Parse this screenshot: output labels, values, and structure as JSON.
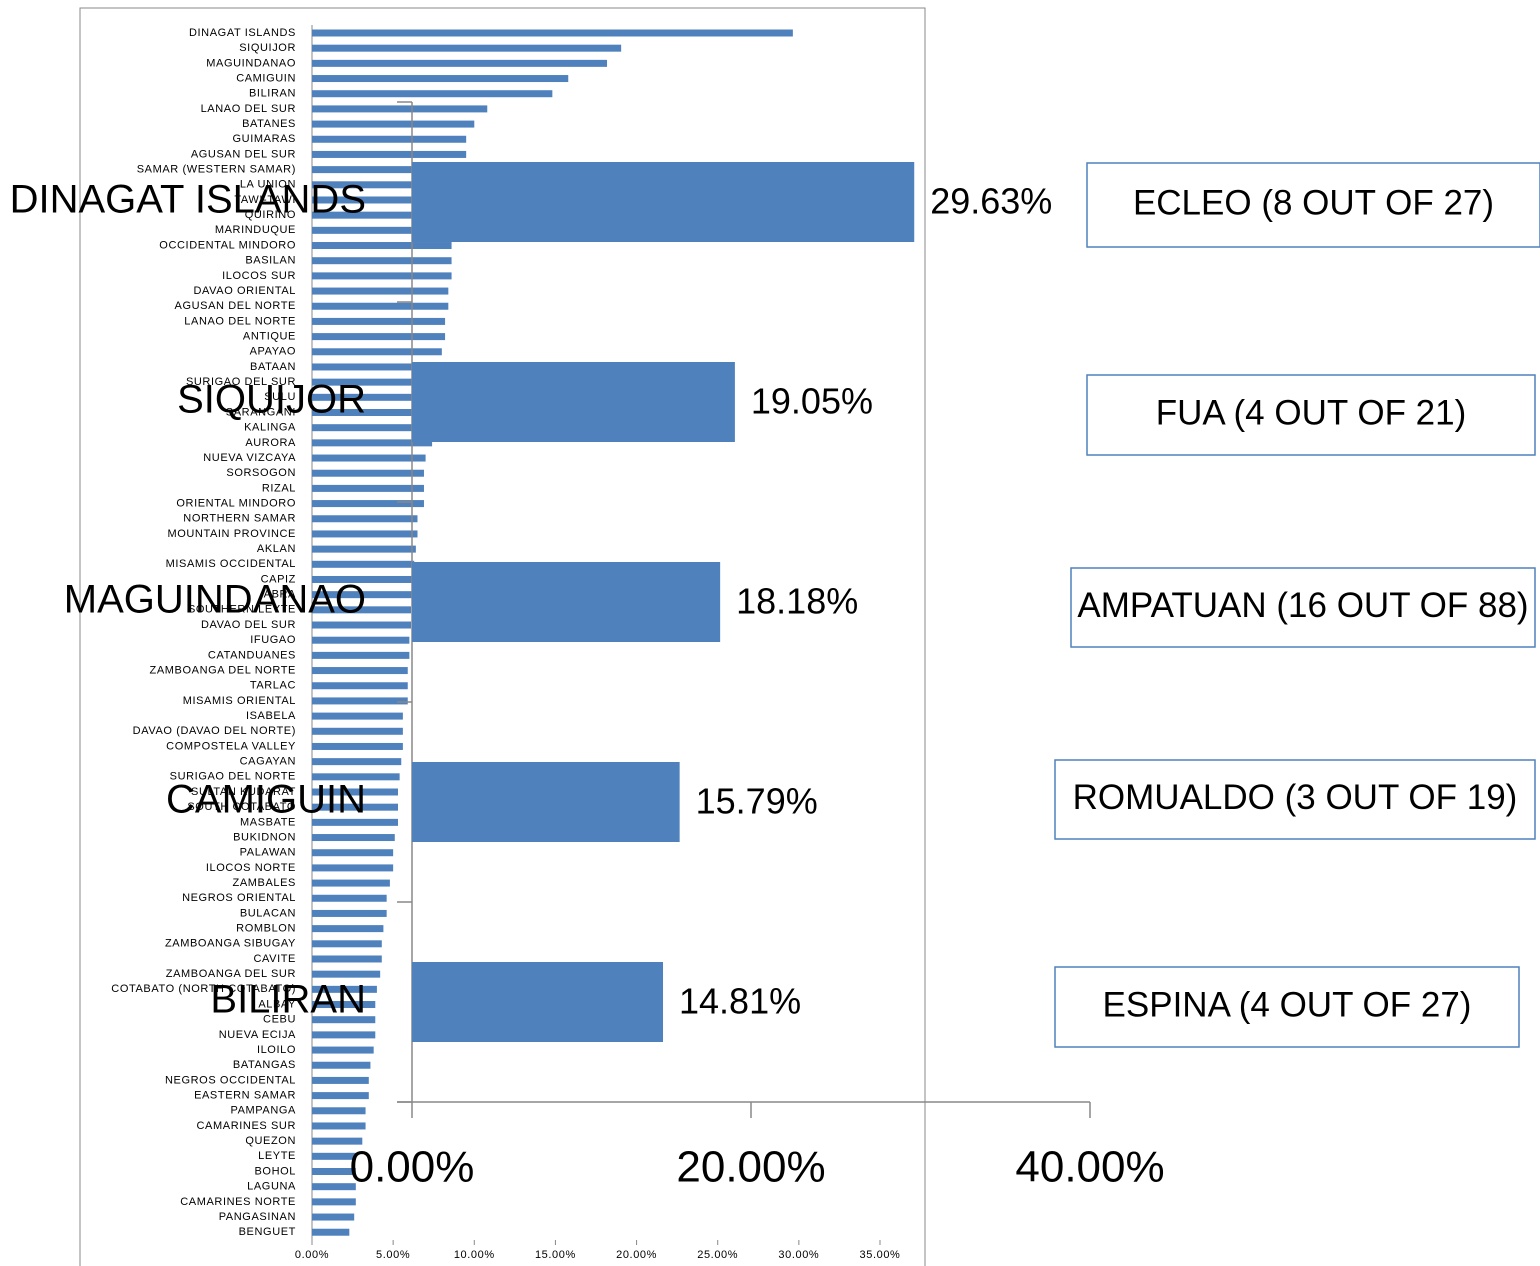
{
  "chart_data": [
    {
      "type": "hbar",
      "color": "#4f81bd",
      "categories": [
        "DINAGAT ISLANDS",
        "SIQUIJOR",
        "MAGUINDANAO",
        "CAMIGUIN",
        "BILIRAN",
        "LANAO DEL SUR",
        "BATANES",
        "GUIMARAS",
        "AGUSAN DEL SUR",
        "SAMAR (WESTERN SAMAR)",
        "LA UNION",
        "TAWI-TAWI",
        "QUIRINO",
        "MARINDUQUE",
        "OCCIDENTAL MINDORO",
        "BASILAN",
        "ILOCOS SUR",
        "DAVAO ORIENTAL",
        "AGUSAN DEL NORTE",
        "LANAO DEL NORTE",
        "ANTIQUE",
        "APAYAO",
        "BATAAN",
        "SURIGAO DEL SUR",
        "SULU",
        "SARANGANI",
        "KALINGA",
        "AURORA",
        "NUEVA VIZCAYA",
        "SORSOGON",
        "RIZAL",
        "ORIENTAL MINDORO",
        "NORTHERN SAMAR",
        "MOUNTAIN PROVINCE",
        "AKLAN",
        "MISAMIS OCCIDENTAL",
        "CAPIZ",
        "ABRA",
        "SOUTHERN LEYTE",
        "DAVAO DEL SUR",
        "IFUGAO",
        "CATANDUANES",
        "ZAMBOANGA DEL NORTE",
        "TARLAC",
        "MISAMIS ORIENTAL",
        "ISABELA",
        "DAVAO (DAVAO DEL NORTE)",
        "COMPOSTELA VALLEY",
        "CAGAYAN",
        "SURIGAO DEL NORTE",
        "SULTAN KUDARAT",
        "SOUTH COTABATO",
        "MASBATE",
        "BUKIDNON",
        "PALAWAN",
        "ILOCOS NORTE",
        "ZAMBALES",
        "NEGROS ORIENTAL",
        "BULACAN",
        "ROMBLON",
        "ZAMBOANGA SIBUGAY",
        "CAVITE",
        "ZAMBOANGA DEL SUR",
        "COTABATO (NORTH COTABATO)",
        "ALBAY",
        "CEBU",
        "NUEVA ECIJA",
        "ILOILO",
        "BATANGAS",
        "NEGROS OCCIDENTAL",
        "EASTERN SAMAR",
        "PAMPANGA",
        "CAMARINES SUR",
        "QUEZON",
        "LEYTE",
        "BOHOL",
        "LAGUNA",
        "CAMARINES NORTE",
        "PANGASINAN",
        "BENGUET"
      ],
      "values": [
        29.63,
        19.05,
        18.18,
        15.79,
        14.81,
        10.8,
        10.0,
        9.5,
        9.5,
        9.2,
        9.0,
        8.9,
        8.8,
        8.7,
        8.6,
        8.6,
        8.6,
        8.4,
        8.4,
        8.2,
        8.2,
        8.0,
        7.9,
        7.8,
        7.7,
        7.6,
        7.5,
        7.4,
        7.0,
        6.9,
        6.9,
        6.9,
        6.5,
        6.5,
        6.4,
        6.3,
        6.2,
        6.2,
        6.1,
        6.1,
        6.0,
        6.0,
        5.9,
        5.9,
        5.9,
        5.6,
        5.6,
        5.6,
        5.5,
        5.4,
        5.3,
        5.3,
        5.3,
        5.1,
        5.0,
        5.0,
        4.8,
        4.6,
        4.6,
        4.4,
        4.3,
        4.3,
        4.2,
        4.0,
        3.9,
        3.9,
        3.9,
        3.8,
        3.6,
        3.5,
        3.5,
        3.3,
        3.3,
        3.1,
        2.7,
        2.7,
        2.7,
        2.7,
        2.6,
        2.3
      ],
      "xlim": [
        0,
        35
      ],
      "xticks": [
        {
          "value": 0,
          "label": "0.00%"
        },
        {
          "value": 5,
          "label": "5.00%"
        },
        {
          "value": 10,
          "label": "10.00%"
        },
        {
          "value": 15,
          "label": "15.00%"
        },
        {
          "value": 20,
          "label": "20.00%"
        },
        {
          "value": 25,
          "label": "25.00%"
        },
        {
          "value": 30,
          "label": "30.00%"
        },
        {
          "value": 35,
          "label": "35.00%"
        }
      ]
    },
    {
      "type": "hbar",
      "color": "#4f81bd",
      "categories": [
        "DINAGAT ISLANDS",
        "SIQUIJOR",
        "MAGUINDANAO",
        "CAMIGUIN",
        "BILIRAN"
      ],
      "values": [
        29.63,
        19.05,
        18.18,
        15.79,
        14.81
      ],
      "value_labels": [
        "29.63%",
        "19.05%",
        "18.18%",
        "15.79%",
        "14.81%"
      ],
      "xlim": [
        0,
        40
      ],
      "xticks": [
        {
          "value": 0,
          "label": "0.00%"
        },
        {
          "value": 20,
          "label": "20.00%"
        },
        {
          "value": 40,
          "label": "40.00%"
        }
      ],
      "annotations": [
        "ECLEO (8 OUT OF 27)",
        "FUA (4 OUT OF 21)",
        "AMPATUAN (16 OUT OF 88)",
        "ROMUALDO (3 OUT OF 19)",
        "ESPINA (4 OUT OF 27)"
      ]
    }
  ]
}
